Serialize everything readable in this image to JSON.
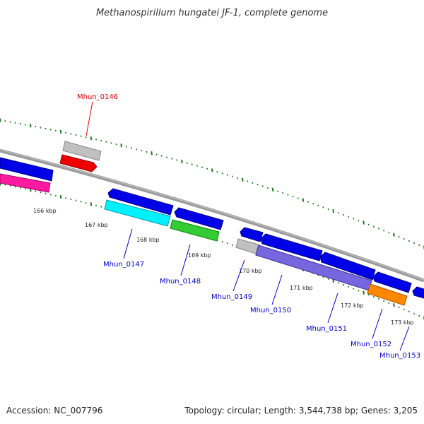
{
  "title": "Methanospirillum hungatei JF-1, complete genome",
  "footer": {
    "accession": "Accession: NC_007796",
    "summary": "Topology: circular; Length: 3,544,738 bp; Genes: 3,205"
  },
  "colors": {
    "backbone": "#888888",
    "tick": "#227a22",
    "label_blue": "#0000cc",
    "label_red": "#dd0000",
    "blue_feature": "#0000e6",
    "grey_feature": "#bbbbbb",
    "red_feature": "#ee0000",
    "magenta_feature": "#ff1aa0",
    "cyan_feature": "#00f0ff",
    "green_feature": "#33cc33",
    "purple_feature": "#7766dd",
    "orange_feature": "#ff8800"
  },
  "kbp_labels": [
    "166 kbp",
    "167 kbp",
    "168 kbp",
    "169 kbp",
    "170 kbp",
    "171 kbp",
    "172 kbp",
    "173 kbp"
  ],
  "gene_labels": {
    "Mhun_0146": "Mhun_0146",
    "Mhun_0147": "Mhun_0147",
    "Mhun_0148": "Mhun_0148",
    "Mhun_0149": "Mhun_0149",
    "Mhun_0150": "Mhun_0150",
    "Mhun_0151": "Mhun_0151",
    "Mhun_0152": "Mhun_0152",
    "Mhun_0153": "Mhun_0153"
  }
}
